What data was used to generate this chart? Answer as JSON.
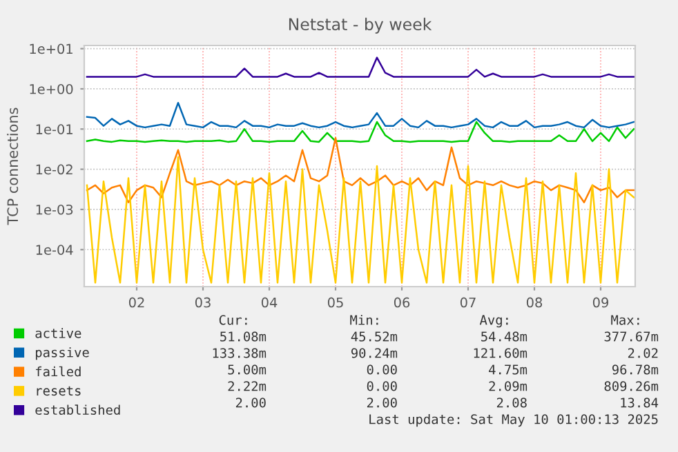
{
  "chart_data": {
    "type": "line",
    "title": "Netstat - by week",
    "ylabel": "TCP connections",
    "x": [
      "2025-05-01T06:00",
      "2025-05-01T09:00",
      "2025-05-01T12:00",
      "2025-05-01T15:00",
      "2025-05-01T18:00",
      "2025-05-01T21:00",
      "2025-05-02T00:00",
      "2025-05-02T03:00",
      "2025-05-02T06:00",
      "2025-05-02T09:00",
      "2025-05-02T12:00",
      "2025-05-02T15:00",
      "2025-05-02T18:00",
      "2025-05-02T21:00",
      "2025-05-03T00:00",
      "2025-05-03T03:00",
      "2025-05-03T06:00",
      "2025-05-03T09:00",
      "2025-05-03T12:00",
      "2025-05-03T15:00",
      "2025-05-03T18:00",
      "2025-05-03T21:00",
      "2025-05-04T00:00",
      "2025-05-04T03:00",
      "2025-05-04T06:00",
      "2025-05-04T09:00",
      "2025-05-04T12:00",
      "2025-05-04T15:00",
      "2025-05-04T18:00",
      "2025-05-04T21:00",
      "2025-05-05T00:00",
      "2025-05-05T03:00",
      "2025-05-05T06:00",
      "2025-05-05T09:00",
      "2025-05-05T12:00",
      "2025-05-05T15:00",
      "2025-05-05T18:00",
      "2025-05-05T21:00",
      "2025-05-06T00:00",
      "2025-05-06T03:00",
      "2025-05-06T06:00",
      "2025-05-06T09:00",
      "2025-05-06T12:00",
      "2025-05-06T15:00",
      "2025-05-06T18:00",
      "2025-05-06T21:00",
      "2025-05-07T00:00",
      "2025-05-07T03:00",
      "2025-05-07T06:00",
      "2025-05-07T09:00",
      "2025-05-07T12:00",
      "2025-05-07T15:00",
      "2025-05-07T18:00",
      "2025-05-07T21:00",
      "2025-05-08T00:00",
      "2025-05-08T03:00",
      "2025-05-08T06:00",
      "2025-05-08T09:00",
      "2025-05-08T12:00",
      "2025-05-08T15:00",
      "2025-05-08T18:00",
      "2025-05-08T21:00",
      "2025-05-09T00:00",
      "2025-05-09T03:00",
      "2025-05-09T06:00",
      "2025-05-09T09:00",
      "2025-05-09T12:00"
    ],
    "series": [
      {
        "name": "active",
        "color": "#00cc00",
        "values": [
          0.05,
          0.055,
          0.05,
          0.048,
          0.052,
          0.05,
          0.05,
          0.048,
          0.05,
          0.052,
          0.05,
          0.05,
          0.048,
          0.05,
          0.05,
          0.05,
          0.052,
          0.048,
          0.05,
          0.1,
          0.05,
          0.05,
          0.048,
          0.05,
          0.05,
          0.05,
          0.09,
          0.05,
          0.048,
          0.08,
          0.05,
          0.05,
          0.05,
          0.048,
          0.05,
          0.15,
          0.07,
          0.05,
          0.05,
          0.048,
          0.05,
          0.05,
          0.05,
          0.05,
          0.048,
          0.05,
          0.05,
          0.15,
          0.08,
          0.05,
          0.05,
          0.048,
          0.05,
          0.05,
          0.05,
          0.05,
          0.05,
          0.07,
          0.05,
          0.05,
          0.1,
          0.05,
          0.08,
          0.05,
          0.11,
          0.06,
          0.1
        ]
      },
      {
        "name": "passive",
        "color": "#0066b3",
        "values": [
          0.2,
          0.19,
          0.12,
          0.18,
          0.13,
          0.16,
          0.12,
          0.11,
          0.12,
          0.13,
          0.12,
          0.45,
          0.13,
          0.12,
          0.11,
          0.15,
          0.12,
          0.12,
          0.11,
          0.16,
          0.12,
          0.12,
          0.11,
          0.13,
          0.12,
          0.12,
          0.14,
          0.12,
          0.11,
          0.12,
          0.15,
          0.12,
          0.11,
          0.12,
          0.13,
          0.25,
          0.12,
          0.12,
          0.18,
          0.12,
          0.11,
          0.16,
          0.12,
          0.12,
          0.11,
          0.12,
          0.13,
          0.18,
          0.12,
          0.11,
          0.15,
          0.12,
          0.12,
          0.16,
          0.11,
          0.12,
          0.12,
          0.13,
          0.15,
          0.12,
          0.11,
          0.17,
          0.12,
          0.11,
          0.12,
          0.13,
          0.15
        ]
      },
      {
        "name": "failed",
        "color": "#ff8000",
        "values": [
          0.003,
          0.004,
          0.0025,
          0.0035,
          0.004,
          0.0015,
          0.003,
          0.004,
          0.0035,
          0.002,
          0.008,
          0.03,
          0.005,
          0.004,
          0.0045,
          0.005,
          0.004,
          0.0055,
          0.004,
          0.005,
          0.0045,
          0.006,
          0.004,
          0.005,
          0.007,
          0.005,
          0.03,
          0.006,
          0.005,
          0.007,
          0.06,
          0.005,
          0.004,
          0.006,
          0.004,
          0.005,
          0.007,
          0.004,
          0.005,
          0.004,
          0.006,
          0.003,
          0.005,
          0.004,
          0.035,
          0.006,
          0.004,
          0.005,
          0.0045,
          0.004,
          0.005,
          0.004,
          0.0035,
          0.004,
          0.005,
          0.0045,
          0.003,
          0.004,
          0.0035,
          0.003,
          0.0015,
          0.004,
          0.003,
          0.0035,
          0.002,
          0.003,
          0.003
        ]
      },
      {
        "name": "resets",
        "color": "#ffcc00",
        "values": [
          0.004,
          1.5e-05,
          0.005,
          0.0002,
          1.5e-05,
          0.006,
          1.5e-05,
          0.004,
          1.5e-05,
          0.005,
          1.5e-05,
          0.02,
          1.5e-05,
          0.006,
          0.0001,
          1.5e-05,
          0.004,
          1.5e-05,
          0.005,
          1.5e-05,
          0.006,
          1.5e-05,
          0.008,
          1.5e-05,
          0.005,
          1.5e-05,
          0.01,
          1.5e-05,
          0.004,
          0.0003,
          1.5e-05,
          0.006,
          1.5e-05,
          0.005,
          1.5e-05,
          0.012,
          1.5e-05,
          0.004,
          1.5e-05,
          0.006,
          0.0001,
          1.5e-05,
          0.005,
          1.5e-05,
          0.004,
          1.5e-05,
          0.012,
          1.5e-05,
          0.005,
          1.5e-05,
          0.004,
          0.0002,
          1.5e-05,
          0.006,
          1.5e-05,
          0.005,
          1.5e-05,
          0.004,
          1.5e-05,
          0.008,
          1.5e-05,
          0.004,
          1.5e-05,
          0.01,
          1.5e-05,
          0.003,
          0.002
        ]
      },
      {
        "name": "established",
        "color": "#330099",
        "values": [
          2,
          2,
          2,
          2,
          2,
          2,
          2,
          2.3,
          2,
          2,
          2,
          2,
          2,
          2,
          2,
          2,
          2,
          2,
          2,
          3.2,
          2,
          2,
          2,
          2,
          2.4,
          2,
          2,
          2,
          2.5,
          2,
          2,
          2,
          2,
          2,
          2,
          6.0,
          2.5,
          2,
          2,
          2,
          2,
          2,
          2,
          2,
          2,
          2,
          2,
          3.0,
          2,
          2.4,
          2,
          2,
          2,
          2,
          2,
          2.3,
          2,
          2,
          2,
          2,
          2,
          2,
          2,
          2.3,
          2,
          2,
          2
        ]
      }
    ],
    "log": "y",
    "ylim": [
      1.2e-05,
      12
    ],
    "yticks": [
      {
        "value": 0.0001,
        "label": "1e-04"
      },
      {
        "value": 0.001,
        "label": "1e-03"
      },
      {
        "value": 0.01,
        "label": "1e-02"
      },
      {
        "value": 0.1,
        "label": "1e-01"
      },
      {
        "value": 1,
        "label": "1e+00"
      },
      {
        "value": 10,
        "label": "1e+01"
      }
    ],
    "xlim": [
      "2025-05-01T05:00",
      "2025-05-09T12:30"
    ],
    "xticks": [
      {
        "value": "2025-05-02",
        "label": "02"
      },
      {
        "value": "2025-05-03",
        "label": "03"
      },
      {
        "value": "2025-05-04",
        "label": "04"
      },
      {
        "value": "2025-05-05",
        "label": "05"
      },
      {
        "value": "2025-05-06",
        "label": "06"
      },
      {
        "value": "2025-05-07",
        "label": "07"
      },
      {
        "value": "2025-05-08",
        "label": "08"
      },
      {
        "value": "2025-05-09",
        "label": "09"
      }
    ],
    "grid": true,
    "legend": "bottom",
    "annotations": [
      "Cur:",
      "Min:",
      "Avg:",
      "Max:",
      "51.08m",
      "45.52m",
      "54.48m",
      "377.67m",
      "133.38m",
      "90.24m",
      "121.60m",
      "2.02",
      "5.00m",
      "0.00",
      "4.75m",
      "96.78m",
      "2.22m",
      "0.00",
      "2.09m",
      "809.26m",
      "2.00",
      "2.00",
      "2.08",
      "13.84",
      "Last update: Sat May 10 01:00:13 2025"
    ]
  }
}
